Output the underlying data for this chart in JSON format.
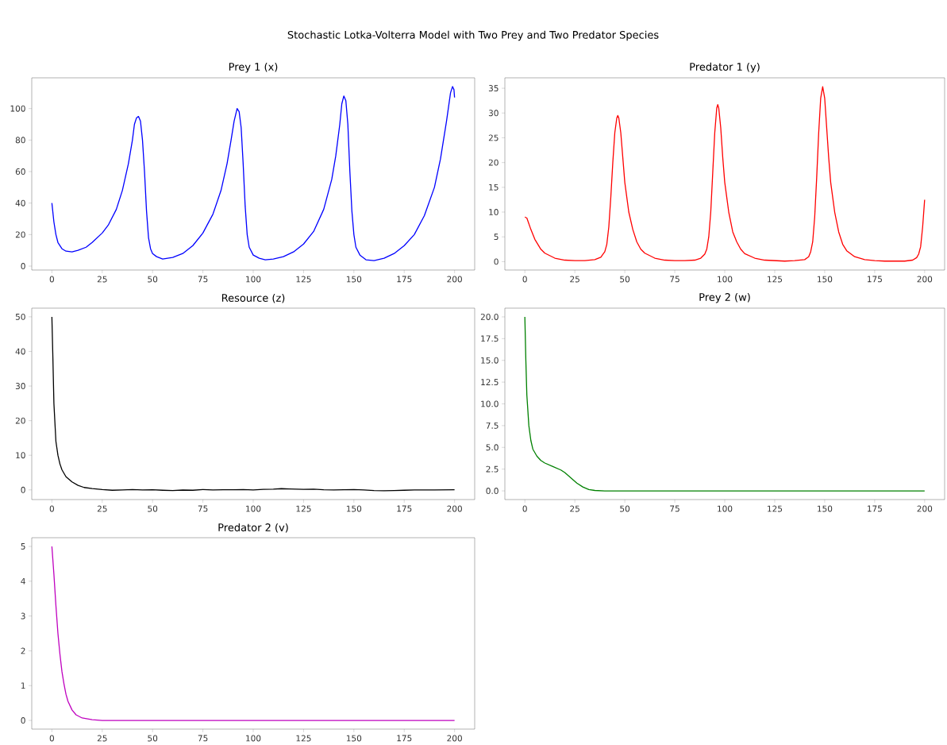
{
  "chart_data": [
    {
      "type": "line",
      "title": "Prey 1 (x)",
      "annotations": [
        "Stochastic Lotka-Volterra Model with Two Prey and Two Predator Species"
      ],
      "color": "#0000ff",
      "xlim": [
        -10,
        210
      ],
      "xticks": [
        0,
        25,
        50,
        75,
        100,
        125,
        150,
        175,
        200
      ],
      "ylim": [
        -2.5,
        119.5
      ],
      "yticks": [
        0,
        20,
        40,
        60,
        80,
        100
      ],
      "x": [
        0,
        1,
        2,
        3,
        5,
        7,
        10,
        13,
        17,
        20,
        25,
        28,
        32,
        35,
        38,
        40,
        41,
        42,
        43,
        44,
        45,
        46,
        47,
        48,
        49,
        50,
        52,
        55,
        60,
        65,
        70,
        75,
        80,
        84,
        87,
        89,
        90.5,
        92,
        93,
        94,
        95,
        96,
        97,
        98,
        100,
        103,
        106,
        110,
        115,
        120,
        125,
        130,
        135,
        139,
        141,
        143,
        144,
        145,
        146,
        147,
        148,
        149,
        150,
        151,
        153,
        156,
        160,
        165,
        170,
        175,
        180,
        185,
        190,
        193,
        196,
        198,
        199,
        199.7,
        200
      ],
      "values": [
        40,
        28,
        20,
        15,
        11,
        9.5,
        9,
        10,
        12,
        15,
        21,
        26,
        36,
        48,
        65,
        80,
        90,
        94,
        95,
        92,
        80,
        60,
        35,
        18,
        11,
        8,
        6,
        4.5,
        5.5,
        8,
        13,
        21,
        33,
        48,
        65,
        80,
        92,
        100,
        98,
        88,
        65,
        38,
        20,
        12,
        7,
        5,
        4,
        4.5,
        6,
        9,
        14,
        22,
        36,
        55,
        70,
        90,
        103,
        108,
        105,
        90,
        60,
        35,
        20,
        12,
        7,
        4,
        3.5,
        5,
        8,
        13,
        20,
        32,
        50,
        68,
        92,
        110,
        114,
        112,
        107
      ]
    },
    {
      "type": "line",
      "title": "Predator 1 (y)",
      "color": "#ff0000",
      "xlim": [
        -10,
        210
      ],
      "xticks": [
        0,
        25,
        50,
        75,
        100,
        125,
        150,
        175,
        200
      ],
      "ylim": [
        -1.7,
        37.1
      ],
      "yticks": [
        0,
        5,
        10,
        15,
        20,
        25,
        30,
        35
      ],
      "x": [
        0,
        1,
        3,
        5,
        8,
        10,
        15,
        20,
        25,
        30,
        35,
        38,
        40,
        41,
        42,
        43,
        44,
        45,
        46,
        46.5,
        47,
        48,
        49,
        50,
        52,
        54,
        56,
        58,
        60,
        65,
        70,
        75,
        80,
        85,
        88,
        90,
        91,
        92,
        93,
        94,
        95,
        96,
        96.5,
        97,
        98,
        99,
        100,
        102,
        104,
        106,
        108,
        110,
        115,
        120,
        125,
        130,
        135,
        140,
        142,
        143,
        144,
        145,
        146,
        147,
        148,
        149,
        150,
        151,
        152,
        153,
        155,
        157,
        159,
        161,
        165,
        170,
        175,
        180,
        185,
        190,
        194,
        196,
        197,
        198,
        199,
        200
      ],
      "values": [
        9,
        8.8,
        6.5,
        4.5,
        2.5,
        1.7,
        0.7,
        0.3,
        0.2,
        0.2,
        0.4,
        0.9,
        2,
        3.5,
        7,
        13,
        20,
        26,
        29,
        29.5,
        29,
        26,
        21,
        16,
        10,
        6.5,
        4,
        2.5,
        1.7,
        0.7,
        0.3,
        0.2,
        0.2,
        0.3,
        0.7,
        1.5,
        2.5,
        5,
        10,
        18,
        26,
        31,
        31.7,
        31,
        27,
        21,
        16,
        10,
        6,
        4,
        2.5,
        1.6,
        0.7,
        0.3,
        0.2,
        0.1,
        0.2,
        0.4,
        1,
        2,
        4,
        9,
        17,
        26,
        33,
        35.3,
        33,
        27,
        21,
        16,
        10,
        6,
        3.5,
        2.2,
        1,
        0.4,
        0.2,
        0.1,
        0.1,
        0.1,
        0.3,
        0.8,
        1.5,
        3,
        7,
        12.5
      ]
    },
    {
      "type": "line",
      "title": "Resource (z)",
      "color": "#000000",
      "xlim": [
        -10,
        210
      ],
      "xticks": [
        0,
        25,
        50,
        75,
        100,
        125,
        150,
        175,
        200
      ],
      "ylim": [
        -2.8,
        52.5
      ],
      "yticks": [
        0,
        10,
        20,
        30,
        40,
        50
      ],
      "x": [
        0,
        0.5,
        1,
        2,
        3,
        4,
        5,
        7,
        10,
        13,
        16,
        20,
        25,
        30,
        35,
        40,
        45,
        50,
        55,
        60,
        65,
        70,
        75,
        80,
        85,
        90,
        95,
        100,
        105,
        110,
        114,
        118,
        125,
        130,
        135,
        140,
        150,
        155,
        160,
        165,
        170,
        175,
        180,
        190,
        200
      ],
      "values": [
        50,
        38,
        25,
        14,
        10,
        7.5,
        5.8,
        3.8,
        2.3,
        1.3,
        0.7,
        0.4,
        0.1,
        -0.1,
        0,
        0.1,
        0,
        0.05,
        -0.1,
        -0.2,
        -0.05,
        -0.1,
        0.1,
        0,
        0.05,
        0.05,
        0.1,
        0,
        0.15,
        0.2,
        0.35,
        0.25,
        0.15,
        0.2,
        0.05,
        0,
        0.1,
        0,
        -0.2,
        -0.25,
        -0.2,
        -0.1,
        0,
        0,
        0.05
      ]
    },
    {
      "type": "line",
      "title": "Prey 2 (w)",
      "color": "#008000",
      "xlim": [
        -10,
        210
      ],
      "xticks": [
        0,
        25,
        50,
        75,
        100,
        125,
        150,
        175,
        200
      ],
      "ylim": [
        -1,
        21
      ],
      "yticks": [
        {
          "value": 0,
          "label": "0.0"
        },
        {
          "value": 2.5,
          "label": "2.5"
        },
        {
          "value": 5,
          "label": "5.0"
        },
        {
          "value": 7.5,
          "label": "7.5"
        },
        {
          "value": 10,
          "label": "10.0"
        },
        {
          "value": 12.5,
          "label": "12.5"
        },
        {
          "value": 15,
          "label": "15.0"
        },
        {
          "value": 17.5,
          "label": "17.5"
        },
        {
          "value": 20,
          "label": "20.0"
        }
      ],
      "x": [
        0,
        0.5,
        1,
        2,
        3,
        4,
        6,
        8,
        10,
        14,
        18,
        20,
        23,
        26,
        29,
        32,
        35,
        40,
        50,
        100,
        150,
        200
      ],
      "values": [
        20,
        15,
        11,
        7.5,
        5.8,
        4.8,
        4,
        3.5,
        3.2,
        2.8,
        2.4,
        2.1,
        1.5,
        0.9,
        0.45,
        0.15,
        0.05,
        0,
        0,
        0,
        0,
        0
      ]
    },
    {
      "type": "line",
      "title": "Predator 2 (v)",
      "color": "#bf00bf",
      "xlim": [
        -10,
        210
      ],
      "xticks": [
        0,
        25,
        50,
        75,
        100,
        125,
        150,
        175,
        200
      ],
      "ylim": [
        -0.25,
        5.25
      ],
      "yticks": [
        0,
        1,
        2,
        3,
        4,
        5
      ],
      "x": [
        0,
        1,
        2,
        3,
        4,
        5,
        6,
        7,
        8,
        10,
        12,
        15,
        20,
        25,
        50,
        100,
        200
      ],
      "values": [
        5,
        4.2,
        3.3,
        2.5,
        1.9,
        1.4,
        1.05,
        0.75,
        0.55,
        0.3,
        0.16,
        0.07,
        0.02,
        0,
        0,
        0,
        0
      ]
    }
  ]
}
